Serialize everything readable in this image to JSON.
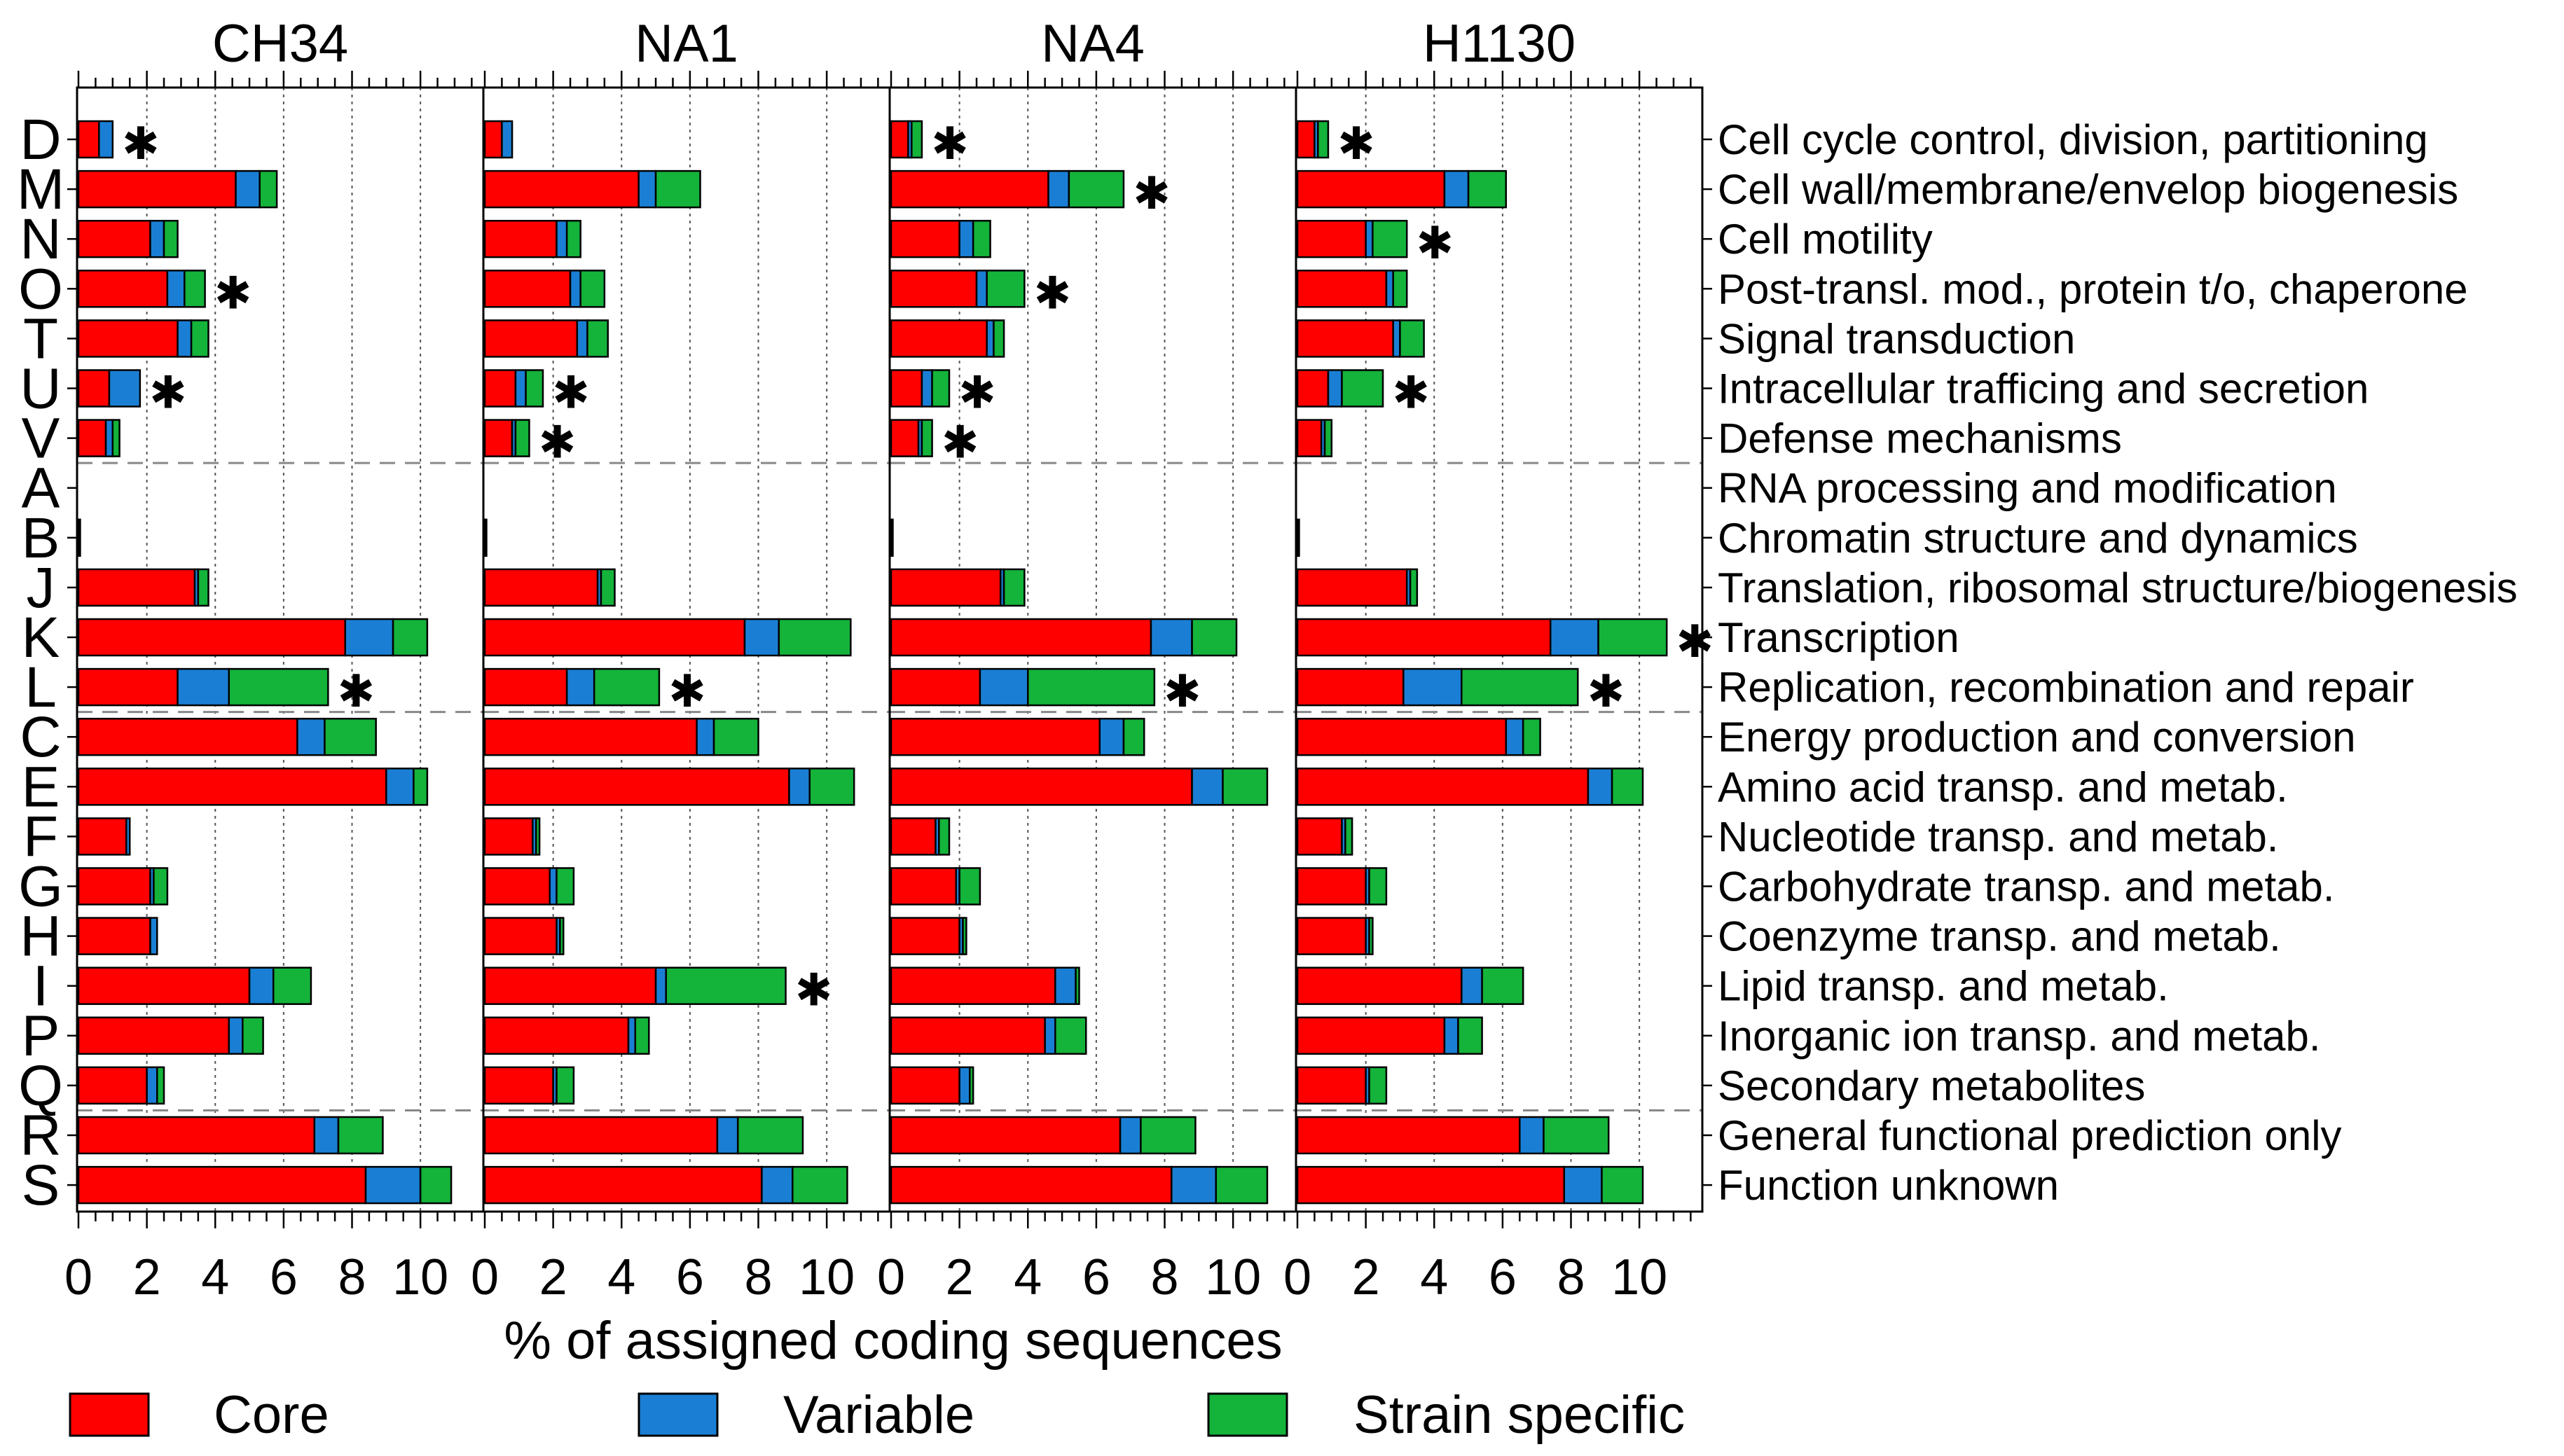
{
  "chart_data": {
    "type": "bar",
    "orientation": "horizontal",
    "stacked": true,
    "xlabel": "% of assigned coding sequences",
    "xlim": [
      0,
      11.8
    ],
    "xticks": [
      0,
      2,
      4,
      6,
      8,
      10
    ],
    "minor_tick_step": 0.5,
    "grid": true,
    "panels": [
      "CH34",
      "NA1",
      "NA4",
      "H1130"
    ],
    "categories": [
      {
        "code": "D",
        "label": "Cell cycle control, division, partitioning"
      },
      {
        "code": "M",
        "label": "Cell wall/membrane/envelop biogenesis"
      },
      {
        "code": "N",
        "label": "Cell motility"
      },
      {
        "code": "O",
        "label": "Post-transl. mod., protein t/o, chaperone"
      },
      {
        "code": "T",
        "label": "Signal transduction"
      },
      {
        "code": "U",
        "label": "Intracellular trafficing and secretion"
      },
      {
        "code": "V",
        "label": "Defense mechanisms"
      },
      {
        "code": "A",
        "label": "RNA processing and modification"
      },
      {
        "code": "B",
        "label": "Chromatin structure and dynamics"
      },
      {
        "code": "J",
        "label": "Translation, ribosomal structure/biogenesis"
      },
      {
        "code": "K",
        "label": "Transcription"
      },
      {
        "code": "L",
        "label": "Replication, recombination and repair"
      },
      {
        "code": "C",
        "label": "Energy production and conversion"
      },
      {
        "code": "E",
        "label": "Amino acid transp. and metab."
      },
      {
        "code": "F",
        "label": "Nucleotide transp. and metab."
      },
      {
        "code": "G",
        "label": "Carbohydrate transp. and metab."
      },
      {
        "code": "H",
        "label": "Coenzyme transp. and metab."
      },
      {
        "code": "I",
        "label": "Lipid transp. and metab."
      },
      {
        "code": "P",
        "label": "Inorganic ion transp. and metab."
      },
      {
        "code": "Q",
        "label": "Secondary metabolites"
      },
      {
        "code": "R",
        "label": "General functional prediction only"
      },
      {
        "code": "S",
        "label": "Function unknown"
      }
    ],
    "group_separators_after": [
      6,
      11,
      19
    ],
    "legend": {
      "position": "bottom",
      "items": [
        {
          "name": "Core",
          "color": "#ff0000"
        },
        {
          "name": "Variable",
          "color": "#1a7fd4"
        },
        {
          "name": "Strain specific",
          "color": "#14b33a"
        }
      ]
    },
    "asterisk_symbol": "✱",
    "series_order": [
      "Core",
      "Variable",
      "Strain specific"
    ],
    "data": {
      "CH34": {
        "Core": [
          0.6,
          4.6,
          2.1,
          2.6,
          2.9,
          0.9,
          0.8,
          0.0,
          0.05,
          3.4,
          7.8,
          2.9,
          6.4,
          9.0,
          1.4,
          2.1,
          2.1,
          5.0,
          4.4,
          2.0,
          6.9,
          8.4
        ],
        "Variable": [
          0.4,
          0.7,
          0.4,
          0.5,
          0.4,
          0.9,
          0.2,
          0.0,
          0.0,
          0.1,
          1.4,
          1.5,
          0.8,
          0.8,
          0.1,
          0.1,
          0.2,
          0.7,
          0.4,
          0.3,
          0.7,
          1.6
        ],
        "Strain specific": [
          0.0,
          0.5,
          0.4,
          0.6,
          0.5,
          0.0,
          0.2,
          0.0,
          0.0,
          0.3,
          1.0,
          2.9,
          1.5,
          0.4,
          0.0,
          0.4,
          0.0,
          1.1,
          0.6,
          0.2,
          1.3,
          0.9
        ],
        "asterisk": [
          true,
          false,
          false,
          true,
          false,
          true,
          false,
          false,
          false,
          false,
          false,
          true,
          false,
          false,
          false,
          false,
          false,
          false,
          false,
          false,
          false,
          false
        ]
      },
      "NA1": {
        "Core": [
          0.5,
          4.5,
          2.1,
          2.5,
          2.7,
          0.9,
          0.8,
          0.0,
          0.05,
          3.3,
          7.6,
          2.4,
          6.2,
          8.9,
          1.4,
          1.9,
          2.1,
          5.0,
          4.2,
          2.0,
          6.8,
          8.1
        ],
        "Variable": [
          0.3,
          0.5,
          0.3,
          0.3,
          0.3,
          0.3,
          0.1,
          0.0,
          0.0,
          0.1,
          1.0,
          0.8,
          0.5,
          0.6,
          0.1,
          0.2,
          0.1,
          0.3,
          0.2,
          0.1,
          0.6,
          0.9
        ],
        "Strain specific": [
          0.0,
          1.3,
          0.4,
          0.7,
          0.6,
          0.5,
          0.4,
          0.0,
          0.0,
          0.4,
          2.1,
          1.9,
          1.3,
          1.3,
          0.1,
          0.5,
          0.1,
          3.5,
          0.4,
          0.5,
          1.9,
          1.6
        ],
        "asterisk": [
          false,
          false,
          false,
          false,
          false,
          true,
          true,
          false,
          false,
          false,
          false,
          true,
          false,
          false,
          false,
          false,
          false,
          true,
          false,
          false,
          false,
          false
        ]
      },
      "NA4": {
        "Core": [
          0.5,
          4.6,
          2.0,
          2.5,
          2.8,
          0.9,
          0.8,
          0.0,
          0.05,
          3.2,
          7.6,
          2.6,
          6.1,
          8.8,
          1.3,
          1.9,
          2.0,
          4.8,
          4.5,
          2.0,
          6.7,
          8.2
        ],
        "Variable": [
          0.1,
          0.6,
          0.4,
          0.3,
          0.2,
          0.3,
          0.1,
          0.0,
          0.0,
          0.1,
          1.2,
          1.4,
          0.7,
          0.9,
          0.1,
          0.1,
          0.1,
          0.6,
          0.3,
          0.3,
          0.6,
          1.3
        ],
        "Strain specific": [
          0.3,
          1.6,
          0.5,
          1.1,
          0.3,
          0.5,
          0.3,
          0.0,
          0.0,
          0.6,
          1.3,
          3.7,
          0.6,
          1.3,
          0.3,
          0.6,
          0.1,
          0.1,
          0.9,
          0.1,
          1.6,
          1.5
        ],
        "asterisk": [
          true,
          true,
          false,
          true,
          false,
          true,
          true,
          false,
          false,
          false,
          false,
          true,
          false,
          false,
          false,
          false,
          false,
          false,
          false,
          false,
          false,
          false
        ]
      },
      "H1130": {
        "Core": [
          0.5,
          4.3,
          2.0,
          2.6,
          2.8,
          0.9,
          0.7,
          0.0,
          0.05,
          3.2,
          7.4,
          3.1,
          6.1,
          8.5,
          1.3,
          2.0,
          2.0,
          4.8,
          4.3,
          2.0,
          6.5,
          7.8
        ],
        "Variable": [
          0.1,
          0.7,
          0.2,
          0.2,
          0.2,
          0.4,
          0.1,
          0.0,
          0.0,
          0.1,
          1.4,
          1.7,
          0.5,
          0.7,
          0.1,
          0.1,
          0.1,
          0.6,
          0.4,
          0.1,
          0.7,
          1.1
        ],
        "Strain specific": [
          0.3,
          1.1,
          1.0,
          0.4,
          0.7,
          1.2,
          0.2,
          0.0,
          0.0,
          0.2,
          2.0,
          3.4,
          0.5,
          0.9,
          0.2,
          0.5,
          0.1,
          1.2,
          0.7,
          0.5,
          1.9,
          1.2
        ],
        "asterisk": [
          true,
          false,
          true,
          false,
          false,
          true,
          false,
          false,
          false,
          false,
          true,
          true,
          false,
          false,
          false,
          false,
          false,
          false,
          false,
          false,
          false,
          false
        ]
      }
    }
  }
}
